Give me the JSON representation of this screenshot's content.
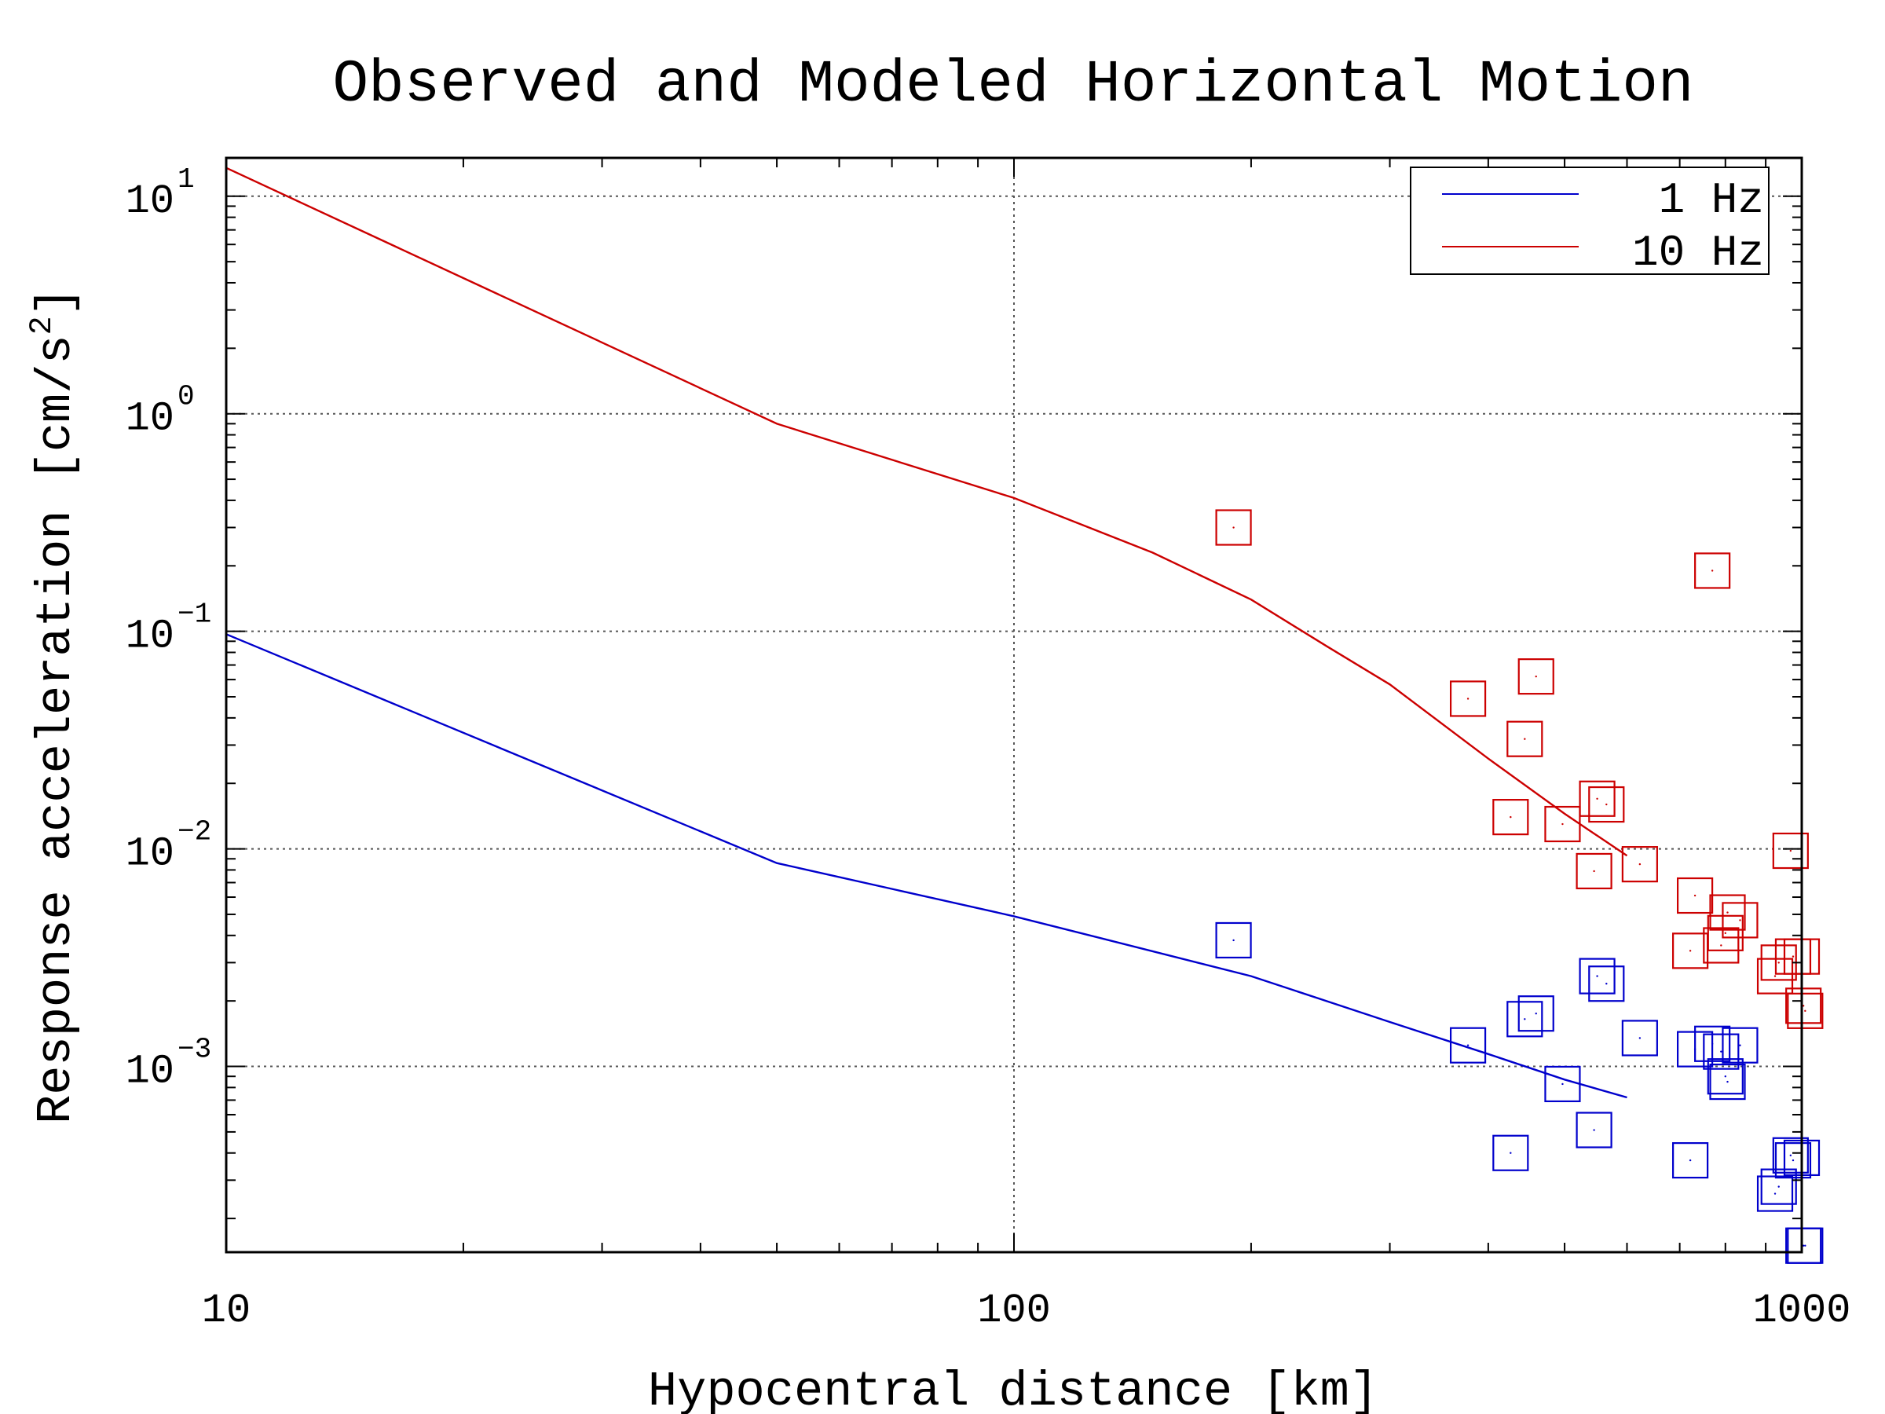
{
  "chart_data": {
    "type": "scatter",
    "title": "Observed and Modeled Horizontal Motion",
    "xlabel": "Hypocentral distance [km]",
    "ylabel_main": "Response acceleration [cm/s",
    "ylabel_sup": "2",
    "ylabel_end": "]",
    "x_scale": "log",
    "y_scale": "log",
    "xlim": [
      10,
      1000
    ],
    "ylim": [
      0.00014,
      15
    ],
    "grid": true,
    "legend_position": "top-right",
    "x_ticks": [
      {
        "value": 10,
        "label": "10"
      },
      {
        "value": 100,
        "label": "100"
      },
      {
        "value": 1000,
        "label": "1000"
      }
    ],
    "y_ticks": [
      {
        "value": 10,
        "base": "10",
        "exp": "1"
      },
      {
        "value": 1,
        "base": "10",
        "exp": "0"
      },
      {
        "value": 0.1,
        "base": "10",
        "exp": "−1"
      },
      {
        "value": 0.01,
        "base": "10",
        "exp": "−2"
      },
      {
        "value": 0.001,
        "base": "10",
        "exp": "−3"
      }
    ],
    "series": [
      {
        "name": "1 Hz",
        "color": "#0000cc",
        "line": {
          "x": [
            10,
            50,
            100,
            200,
            300,
            400,
            500,
            600
          ],
          "y": [
            0.097,
            0.0086,
            0.0049,
            0.0026,
            0.0016,
            0.00114,
            0.00087,
            0.00072
          ]
        },
        "points": {
          "x": [
            190,
            377,
            427,
            445,
            460,
            497,
            545,
            550,
            565,
            623,
            722,
            732,
            770,
            790,
            800,
            805,
            835,
            925,
            935,
            968,
            975,
            1000,
            1005,
            1010
          ],
          "y": [
            0.0038,
            0.00125,
            0.0004,
            0.00165,
            0.00175,
            0.00083,
            0.00051,
            0.0026,
            0.0024,
            0.00135,
            0.00037,
            0.0012,
            0.00127,
            0.00117,
            0.0009,
            0.00085,
            0.00125,
            0.00026,
            0.00028,
            0.00039,
            0.00037,
            0.00038,
            0.00015,
            0.00015
          ]
        }
      },
      {
        "name": "10 Hz",
        "color": "#cc0000",
        "line": {
          "x": [
            10,
            50,
            100,
            150,
            200,
            250,
            300,
            400,
            500,
            600
          ],
          "y": [
            13.5,
            0.9,
            0.41,
            0.23,
            0.14,
            0.085,
            0.057,
            0.026,
            0.0145,
            0.0093
          ]
        },
        "points": {
          "x": [
            190,
            377,
            427,
            445,
            460,
            497,
            545,
            550,
            565,
            623,
            722,
            732,
            770,
            790,
            800,
            805,
            835,
            925,
            935,
            968,
            975,
            1000,
            1005,
            1010
          ],
          "y": [
            0.3,
            0.049,
            0.014,
            0.032,
            0.062,
            0.013,
            0.0079,
            0.017,
            0.016,
            0.0085,
            0.0034,
            0.0061,
            0.19,
            0.0036,
            0.0041,
            0.0051,
            0.0047,
            0.0026,
            0.003,
            0.0098,
            0.0032,
            0.0032,
            0.0019,
            0.0018
          ]
        }
      }
    ]
  }
}
